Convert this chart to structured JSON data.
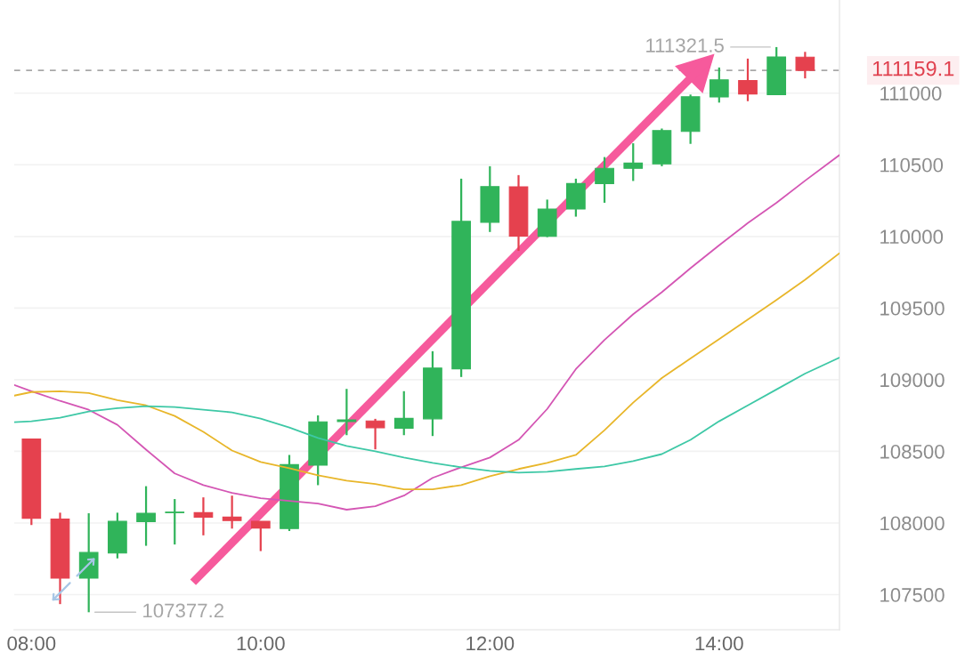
{
  "chart_data": {
    "type": "candlestick",
    "x": [
      8.0,
      8.25,
      8.5,
      8.75,
      9.0,
      9.25,
      9.5,
      9.75,
      10.0,
      10.25,
      10.5,
      10.75,
      11.0,
      11.25,
      11.5,
      11.75,
      12.0,
      12.25,
      12.5,
      12.75,
      13.0,
      13.25,
      13.5,
      13.75,
      14.0,
      14.25,
      14.5,
      14.75
    ],
    "ohlc": [
      [
        108586,
        108586,
        107986,
        108033
      ],
      [
        108027,
        108072,
        107434,
        107615
      ],
      [
        107615,
        108068,
        107377.2,
        107794
      ],
      [
        107790,
        108072,
        107753,
        108012
      ],
      [
        108010,
        108257,
        107841,
        108068
      ],
      [
        108072,
        108167,
        107850,
        108076
      ],
      [
        108072,
        108179,
        107914,
        108041
      ],
      [
        108041,
        108191,
        107961,
        108017
      ],
      [
        108012,
        108012,
        107804,
        107965
      ],
      [
        107961,
        108475,
        107944,
        108407
      ],
      [
        108403,
        108751,
        108264,
        108706
      ],
      [
        108708,
        108936,
        108613,
        108720
      ],
      [
        108712,
        108727,
        108514,
        108665
      ],
      [
        108662,
        108920,
        108613,
        108730
      ],
      [
        108727,
        109199,
        108607,
        109082
      ],
      [
        109076,
        110403,
        109019,
        110105
      ],
      [
        110099,
        110490,
        110031,
        110348
      ],
      [
        110346,
        110428,
        109899,
        110002
      ],
      [
        110000,
        110257,
        109995,
        110191
      ],
      [
        110191,
        110403,
        110138,
        110369
      ],
      [
        110369,
        110554,
        110235,
        110475
      ],
      [
        110475,
        110650,
        110387,
        110512
      ],
      [
        110506,
        110753,
        110490,
        110739
      ],
      [
        110733,
        110990,
        110646,
        110975
      ],
      [
        110973,
        111179,
        110934,
        111093
      ],
      [
        111088,
        111241,
        110944,
        110994
      ],
      [
        110990,
        111321.5,
        110990,
        111253
      ],
      [
        111251,
        111288,
        111103,
        111159.1
      ]
    ],
    "colors": [
      "#e5414e",
      "#e5414e",
      "#30b45a",
      "#30b45a",
      "#30b45a",
      "#30b45a",
      "#e5414e",
      "#e5414e",
      "#e5414e",
      "#30b45a",
      "#30b45a",
      "#30b45a",
      "#e5414e",
      "#30b45a",
      "#30b45a",
      "#30b45a",
      "#30b45a",
      "#e5414e",
      "#30b45a",
      "#30b45a",
      "#30b45a",
      "#30b45a",
      "#30b45a",
      "#30b45a",
      "#30b45a",
      "#e5414e",
      "#30b45a",
      "#e5414e"
    ],
    "series": [
      {
        "type": "line",
        "color": "#d456b4",
        "x": [
          7.85,
          8.0,
          8.25,
          8.5,
          8.75,
          9.0,
          9.25,
          9.5,
          9.75,
          10.0,
          10.25,
          10.5,
          10.75,
          11.0,
          11.25,
          11.5,
          11.75,
          12.0,
          12.25,
          12.5,
          12.75,
          13.0,
          13.25,
          13.5,
          13.75,
          14.0,
          14.25,
          14.5,
          14.75,
          15.05
        ],
        "values": [
          108963,
          108920,
          108852,
          108790,
          108685,
          108512,
          108346,
          108265,
          108210,
          108173,
          108154,
          108136,
          108093,
          108117,
          108191,
          108315,
          108389,
          108457,
          108580,
          108796,
          109074,
          109278,
          109457,
          109611,
          109778,
          109938,
          110093,
          110235,
          110389,
          110568
        ]
      },
      {
        "type": "line",
        "color": "#e8b62a",
        "x": [
          7.85,
          8.0,
          8.25,
          8.5,
          8.75,
          9.0,
          9.25,
          9.5,
          9.75,
          10.0,
          10.25,
          10.5,
          10.75,
          11.0,
          11.25,
          11.5,
          11.75,
          12.0,
          12.25,
          12.5,
          12.75,
          13.0,
          13.25,
          13.5,
          13.75,
          14.0,
          14.25,
          14.5,
          14.75,
          15.05
        ],
        "values": [
          108889,
          108914,
          108920,
          108907,
          108858,
          108821,
          108747,
          108636,
          108506,
          108426,
          108383,
          108333,
          108296,
          108272,
          108235,
          108235,
          108265,
          108327,
          108377,
          108420,
          108475,
          108648,
          108840,
          109012,
          109148,
          109284,
          109420,
          109556,
          109698,
          109883
        ]
      },
      {
        "type": "line",
        "color": "#3ec8a6",
        "x": [
          7.85,
          8.0,
          8.25,
          8.5,
          8.75,
          9.0,
          9.25,
          9.5,
          9.75,
          10.0,
          10.25,
          10.5,
          10.75,
          11.0,
          11.25,
          11.5,
          11.75,
          12.0,
          12.25,
          12.5,
          12.75,
          13.0,
          13.25,
          13.5,
          13.75,
          14.0,
          14.25,
          14.5,
          14.75,
          15.05
        ],
        "values": [
          108704,
          108710,
          108735,
          108778,
          108802,
          108815,
          108809,
          108790,
          108772,
          108728,
          108667,
          108593,
          108537,
          108500,
          108457,
          108420,
          108389,
          108364,
          108352,
          108358,
          108377,
          108395,
          108432,
          108481,
          108580,
          108710,
          108821,
          108932,
          109043,
          109154
        ]
      },
      {
        "type": "line",
        "color": "#f65a9c",
        "x": [
          9.41,
          13.91
        ],
        "values": [
          107586,
          111235
        ]
      }
    ],
    "xlim": [
      7.85,
      15.05
    ],
    "xticks": [
      {
        "value": 8,
        "label": "08:00"
      },
      {
        "value": 10,
        "label": "10:00"
      },
      {
        "value": 12,
        "label": "12:00"
      },
      {
        "value": 14,
        "label": "14:00"
      }
    ],
    "ylim": [
      107255,
      111650
    ],
    "yticks": [
      107500,
      108000,
      108500,
      109000,
      109500,
      110000,
      110500,
      111000
    ],
    "grid": "y",
    "ref_lines": [
      {
        "axis": "y",
        "value": 111159.1,
        "label": "111159.1",
        "color": "#a8a8a8",
        "line_style": "dashed"
      }
    ],
    "annotations": [
      {
        "text": "111321.5",
        "x": 14.5,
        "y": 111321.5
      },
      {
        "text": "107377.2",
        "x": 8.5,
        "y": 107377.2
      }
    ]
  }
}
